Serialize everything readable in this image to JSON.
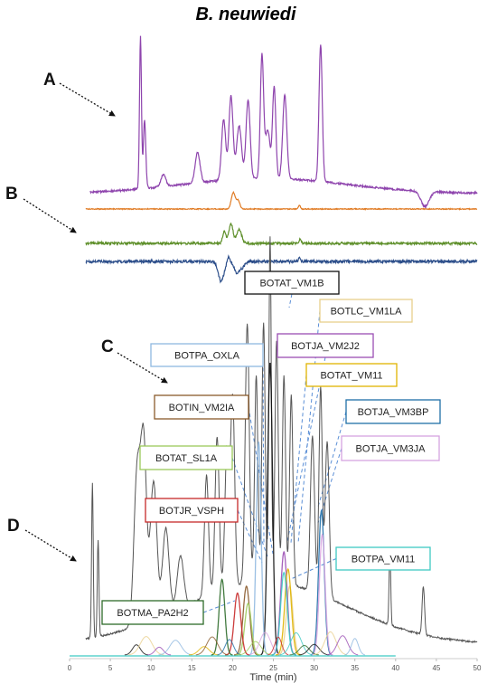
{
  "title": "B. neuwiedi",
  "panels": {
    "A": "A",
    "B": "B",
    "C": "C",
    "D": "D"
  },
  "chart_data": {
    "type": "line",
    "xlabel": "Time (min)",
    "xlim": [
      0,
      50
    ],
    "xticks": [
      0,
      5,
      10,
      15,
      20,
      25,
      30,
      35,
      40,
      45,
      50
    ],
    "traces": [
      {
        "panel": "A",
        "color": "#8e44ad",
        "baseline": 0.1,
        "peaks": [
          [
            8.7,
            1.0,
            0.12
          ],
          [
            9.2,
            0.45,
            0.15
          ],
          [
            11.5,
            0.08,
            0.3
          ],
          [
            15.7,
            0.2,
            0.3
          ],
          [
            18.9,
            0.4,
            0.25
          ],
          [
            19.8,
            0.55,
            0.25
          ],
          [
            20.8,
            0.35,
            0.3
          ],
          [
            21.9,
            0.52,
            0.25
          ],
          [
            23.6,
            0.8,
            0.2
          ],
          [
            24.3,
            0.32,
            0.3
          ],
          [
            25.1,
            0.6,
            0.2
          ],
          [
            26.4,
            0.55,
            0.25
          ],
          [
            30.8,
            0.9,
            0.2
          ]
        ]
      },
      {
        "panel": "B",
        "color": "#e07b24",
        "baseline": 0,
        "peaks": [
          [
            20.1,
            1.0,
            0.25
          ],
          [
            20.7,
            0.5,
            0.2
          ],
          [
            28.2,
            0.25,
            0.12
          ]
        ]
      },
      {
        "panel": "B",
        "color": "#5e8f2a",
        "baseline": 0,
        "peaks": [
          [
            19.0,
            0.6,
            0.2
          ],
          [
            19.8,
            1.0,
            0.25
          ],
          [
            20.8,
            0.7,
            0.3
          ],
          [
            28.3,
            0.2,
            0.12
          ]
        ]
      },
      {
        "panel": "B",
        "color": "#2c4e8a",
        "baseline": 0,
        "peaks": [
          [
            18.6,
            -1.0,
            0.35
          ],
          [
            19.5,
            0.3,
            0.15
          ],
          [
            20.5,
            -0.55,
            0.3
          ],
          [
            21.2,
            -0.3,
            0.3
          ],
          [
            28.2,
            0.15,
            0.12
          ]
        ]
      },
      {
        "panel": "D",
        "color": "#555555",
        "baseline": 0.18,
        "peaks": [
          [
            2.8,
            0.45,
            0.1
          ],
          [
            3.5,
            0.28,
            0.1
          ],
          [
            8.3,
            0.45,
            0.4
          ],
          [
            9.1,
            0.5,
            0.35
          ],
          [
            10.3,
            0.4,
            0.4
          ],
          [
            11.8,
            0.25,
            0.4
          ],
          [
            13.6,
            0.15,
            0.4
          ],
          [
            16.8,
            0.35,
            0.25
          ],
          [
            18.1,
            0.45,
            0.25
          ],
          [
            19.3,
            0.4,
            0.25
          ],
          [
            20.0,
            0.55,
            0.25
          ],
          [
            21.8,
            0.75,
            0.25
          ],
          [
            22.9,
            0.6,
            0.2
          ],
          [
            23.8,
            0.75,
            0.2
          ],
          [
            24.6,
            1.0,
            0.15
          ],
          [
            25.4,
            0.7,
            0.2
          ],
          [
            26.3,
            0.6,
            0.2
          ],
          [
            27.2,
            0.55,
            0.2
          ],
          [
            29.8,
            0.45,
            0.25
          ],
          [
            30.8,
            0.6,
            0.2
          ],
          [
            31.6,
            0.45,
            0.25
          ],
          [
            39.3,
            0.22,
            0.1
          ],
          [
            43.4,
            0.14,
            0.15
          ]
        ]
      }
    ],
    "toxins": [
      {
        "name": "BOTAT_VM1B",
        "color": "#111111",
        "peak": [
          24.6,
          0.85,
          0.3
        ]
      },
      {
        "name": "BOTLC_VM1LA",
        "color": "#e8d08c",
        "peak": [
          27.0,
          0.2,
          0.4
        ]
      },
      {
        "name": "BOTJA_VM2J2",
        "color": "#9b4fb4",
        "peak": [
          26.3,
          0.3,
          0.4
        ]
      },
      {
        "name": "BOTPA_OXLA",
        "color": "#8fb8e0",
        "peak": [
          23.2,
          0.62,
          0.3
        ]
      },
      {
        "name": "BOTAT_VM11",
        "color": "#e0b400",
        "peak": [
          26.8,
          0.25,
          0.4
        ]
      },
      {
        "name": "BOTIN_VM2IA",
        "color": "#8a5a2b",
        "peak": [
          21.7,
          0.2,
          0.4
        ]
      },
      {
        "name": "BOTJA_VM3BP",
        "color": "#1f6fa8",
        "peak": [
          30.9,
          0.42,
          0.35
        ]
      },
      {
        "name": "BOTAT_SL1A",
        "color": "#9cc95a",
        "peak": [
          21.9,
          0.15,
          0.4
        ]
      },
      {
        "name": "BOTJA_VM3JA",
        "color": "#d6a3e0",
        "peak": [
          31.0,
          0.35,
          0.35
        ]
      },
      {
        "name": "BOTJR_VSPH",
        "color": "#c62828",
        "peak": [
          20.6,
          0.18,
          0.4
        ]
      },
      {
        "name": "BOTPA_VM11",
        "color": "#3ec9c3",
        "peak": [
          26.3,
          0.24,
          0.4
        ]
      },
      {
        "name": "BOTMA_PA2H2",
        "color": "#2e6b2a",
        "peak": [
          18.7,
          0.22,
          0.35
        ]
      }
    ]
  }
}
